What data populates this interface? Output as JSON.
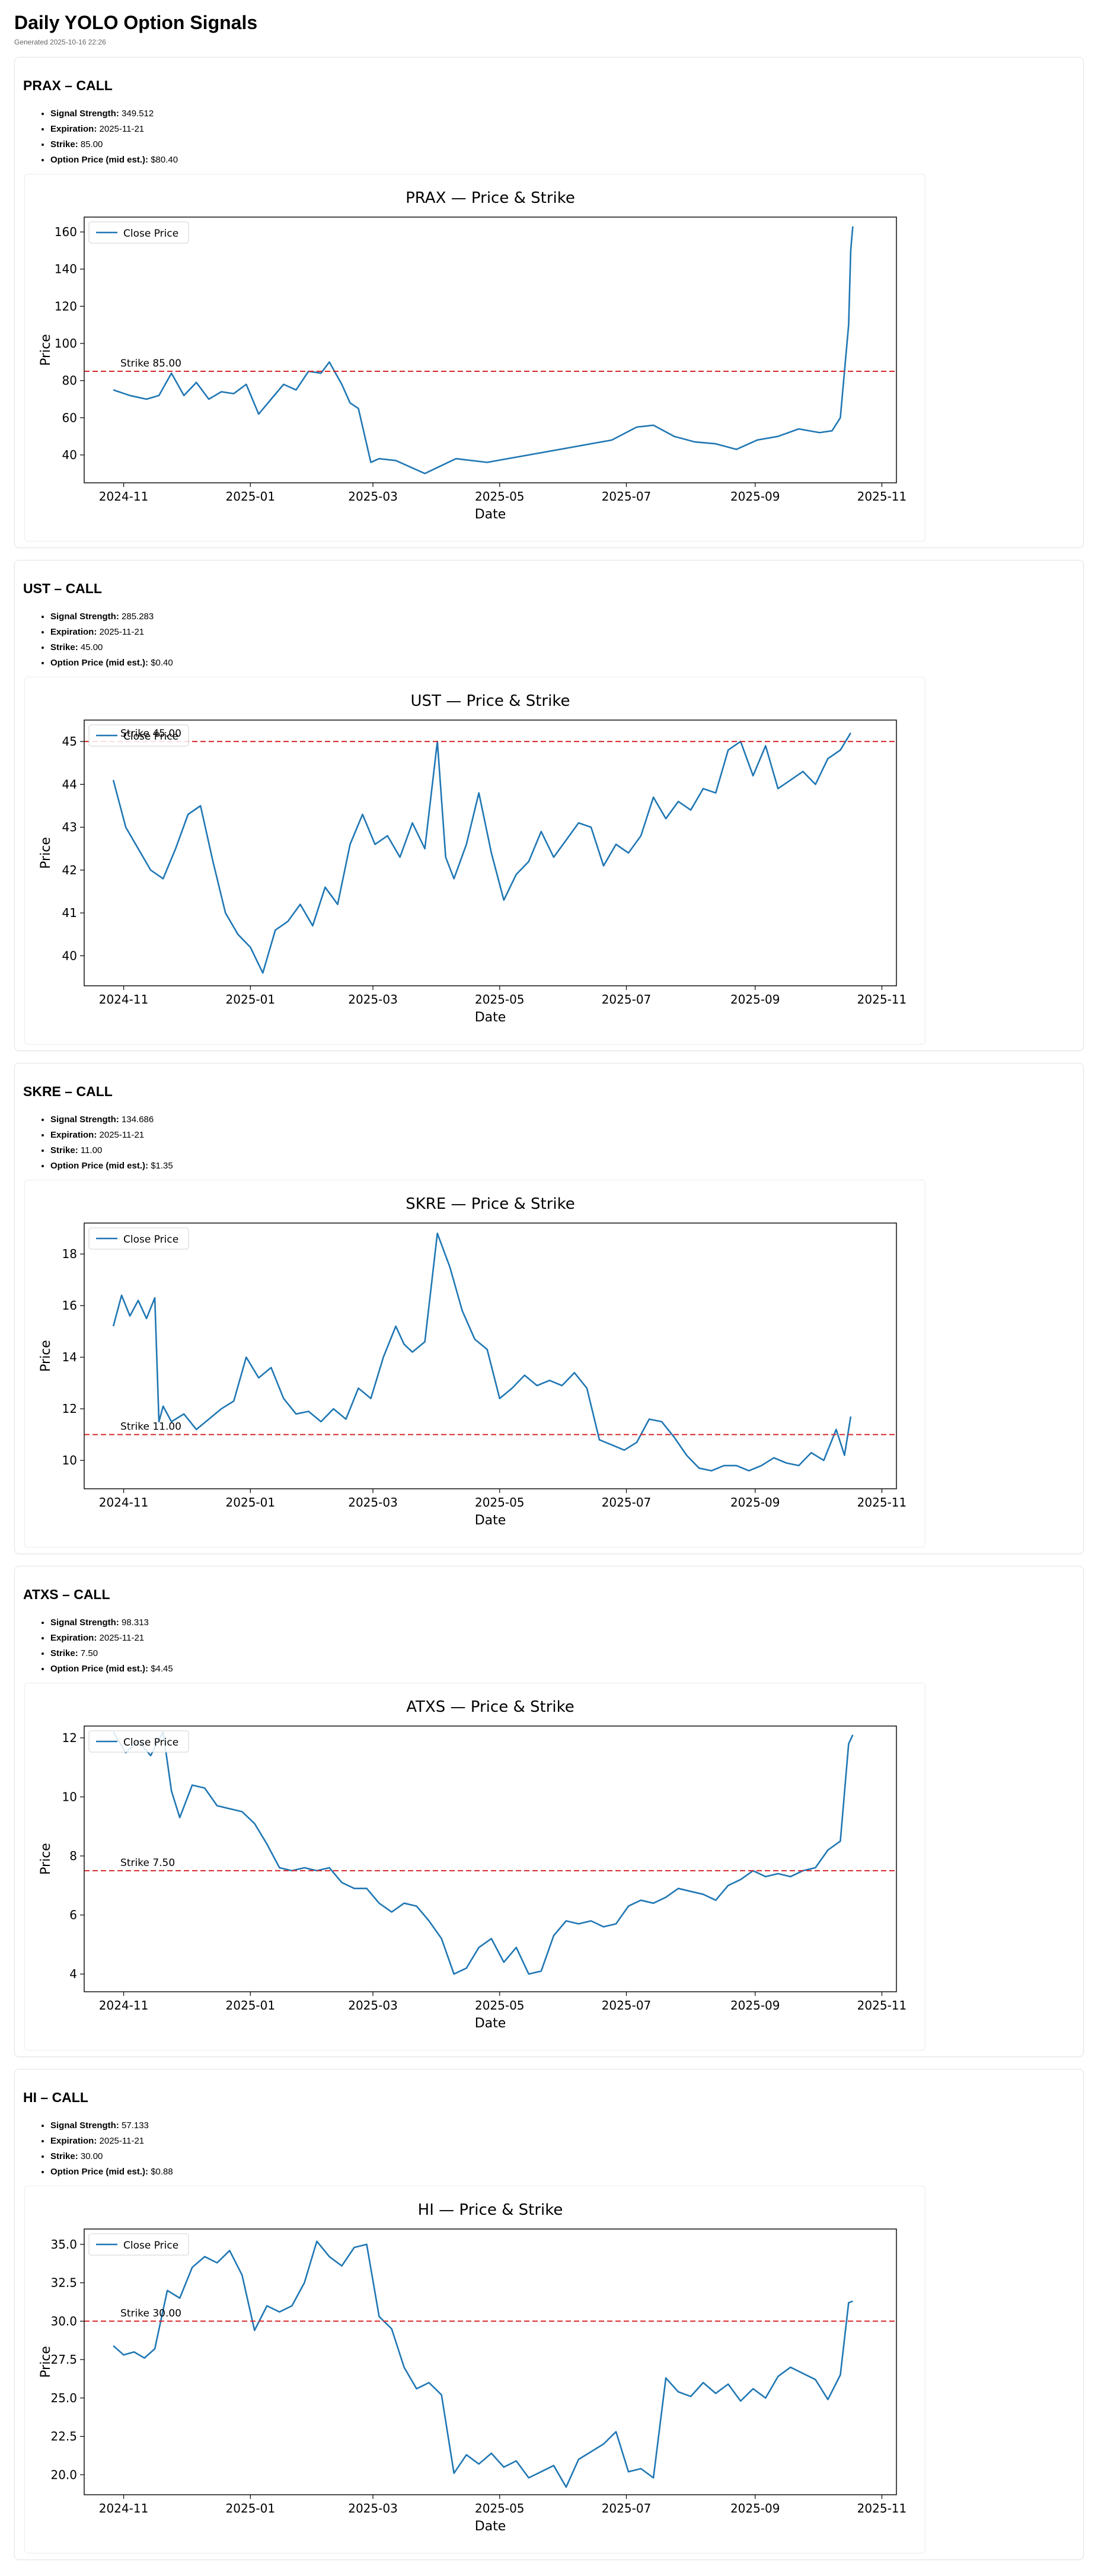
{
  "page": {
    "title": "Daily YOLO Option Signals",
    "generated": "Generated 2025-10-16 22:26"
  },
  "labels": {
    "signal_strength": "Signal Strength:",
    "expiration": "Expiration:",
    "strike": "Strike:",
    "option_price": "Option Price (mid est.):"
  },
  "colors": {
    "line": "#1f77b4",
    "strike_line": "#d62728"
  },
  "signals": [
    {
      "heading": "PRAX – CALL",
      "signal_strength": "349.512",
      "expiration": "2025-11-21",
      "strike": "85.00",
      "option_price": "$80.40"
    },
    {
      "heading": "UST – CALL",
      "signal_strength": "285.283",
      "expiration": "2025-11-21",
      "strike": "45.00",
      "option_price": "$0.40"
    },
    {
      "heading": "SKRE – CALL",
      "signal_strength": "134.686",
      "expiration": "2025-11-21",
      "strike": "11.00",
      "option_price": "$1.35"
    },
    {
      "heading": "ATXS – CALL",
      "signal_strength": "98.313",
      "expiration": "2025-11-21",
      "strike": "7.50",
      "option_price": "$4.45"
    },
    {
      "heading": "HI – CALL",
      "signal_strength": "57.133",
      "expiration": "2025-11-21",
      "strike": "30.00",
      "option_price": "$0.88"
    }
  ],
  "chart_data": [
    {
      "type": "line",
      "title": "PRAX — Price & Strike",
      "xlabel": "Date",
      "ylabel": "Price",
      "legend": "Close Price",
      "legend_position": "top-left",
      "strike": 85.0,
      "strike_label": "Strike 85.00",
      "xlim": [
        -14,
        377
      ],
      "x_ticks": [
        {
          "t": 5,
          "label": "2024-11"
        },
        {
          "t": 66,
          "label": "2025-01"
        },
        {
          "t": 125,
          "label": "2025-03"
        },
        {
          "t": 186,
          "label": "2025-05"
        },
        {
          "t": 247,
          "label": "2025-07"
        },
        {
          "t": 309,
          "label": "2025-09"
        },
        {
          "t": 370,
          "label": "2025-11"
        }
      ],
      "ylim": [
        25,
        168
      ],
      "y_ticks": [
        40,
        60,
        80,
        100,
        120,
        140,
        160
      ],
      "series": [
        {
          "name": "Close Price",
          "t": [
            0,
            8,
            16,
            22,
            28,
            34,
            40,
            46,
            52,
            58,
            64,
            70,
            76,
            82,
            88,
            94,
            100,
            104,
            110,
            114,
            118,
            124,
            128,
            136,
            150,
            165,
            180,
            200,
            220,
            240,
            252,
            260,
            270,
            280,
            290,
            300,
            310,
            320,
            330,
            340,
            346,
            350,
            354,
            355,
            356
          ],
          "y": [
            75,
            72,
            70,
            72,
            84,
            72,
            79,
            70,
            74,
            73,
            78,
            62,
            70,
            78,
            75,
            85,
            84,
            90,
            78,
            68,
            65,
            36,
            38,
            37,
            30,
            38,
            36,
            40,
            44,
            48,
            55,
            56,
            50,
            47,
            46,
            43,
            48,
            50,
            54,
            52,
            53,
            60,
            110,
            150,
            163
          ]
        }
      ]
    },
    {
      "type": "line",
      "title": "UST — Price & Strike",
      "xlabel": "Date",
      "ylabel": "Price",
      "legend": "Close Price",
      "legend_position": "top-left",
      "strike": 45.0,
      "strike_label": "Strike 45.00",
      "xlim": [
        -14,
        377
      ],
      "x_ticks": [
        {
          "t": 5,
          "label": "2024-11"
        },
        {
          "t": 66,
          "label": "2025-01"
        },
        {
          "t": 125,
          "label": "2025-03"
        },
        {
          "t": 186,
          "label": "2025-05"
        },
        {
          "t": 247,
          "label": "2025-07"
        },
        {
          "t": 309,
          "label": "2025-09"
        },
        {
          "t": 370,
          "label": "2025-11"
        }
      ],
      "ylim": [
        39.3,
        45.5
      ],
      "y_ticks": [
        40,
        41,
        42,
        43,
        44,
        45
      ],
      "series": [
        {
          "name": "Close Price",
          "t": [
            0,
            6,
            12,
            18,
            24,
            30,
            36,
            42,
            48,
            54,
            60,
            66,
            72,
            78,
            84,
            90,
            96,
            102,
            108,
            114,
            120,
            126,
            132,
            138,
            144,
            150,
            156,
            160,
            164,
            170,
            176,
            182,
            188,
            194,
            200,
            206,
            212,
            218,
            224,
            230,
            236,
            242,
            248,
            254,
            260,
            266,
            272,
            278,
            284,
            290,
            296,
            302,
            308,
            314,
            320,
            326,
            332,
            338,
            344,
            350,
            355
          ],
          "y": [
            44.1,
            43.0,
            42.5,
            42.0,
            41.8,
            42.5,
            43.3,
            43.5,
            42.2,
            41.0,
            40.5,
            40.2,
            39.6,
            40.6,
            40.8,
            41.2,
            40.7,
            41.6,
            41.2,
            42.6,
            43.3,
            42.6,
            42.8,
            42.3,
            43.1,
            42.5,
            45.0,
            42.3,
            41.8,
            42.6,
            43.8,
            42.4,
            41.3,
            41.9,
            42.2,
            42.9,
            42.3,
            42.7,
            43.1,
            43.0,
            42.1,
            42.6,
            42.4,
            42.8,
            43.7,
            43.2,
            43.6,
            43.4,
            43.9,
            43.8,
            44.8,
            45.0,
            44.2,
            44.9,
            43.9,
            44.1,
            44.3,
            44.0,
            44.6,
            44.8,
            45.2
          ]
        }
      ]
    },
    {
      "type": "line",
      "title": "SKRE — Price & Strike",
      "xlabel": "Date",
      "ylabel": "Price",
      "legend": "Close Price",
      "legend_position": "top-left",
      "strike": 11.0,
      "strike_label": "Strike 11.00",
      "xlim": [
        -14,
        377
      ],
      "x_ticks": [
        {
          "t": 5,
          "label": "2024-11"
        },
        {
          "t": 66,
          "label": "2025-01"
        },
        {
          "t": 125,
          "label": "2025-03"
        },
        {
          "t": 186,
          "label": "2025-05"
        },
        {
          "t": 247,
          "label": "2025-07"
        },
        {
          "t": 309,
          "label": "2025-09"
        },
        {
          "t": 370,
          "label": "2025-11"
        }
      ],
      "ylim": [
        8.9,
        19.2
      ],
      "y_ticks": [
        10,
        12,
        14,
        16,
        18
      ],
      "series": [
        {
          "name": "Close Price",
          "t": [
            0,
            4,
            8,
            12,
            16,
            20,
            22,
            24,
            28,
            34,
            40,
            46,
            52,
            58,
            64,
            70,
            76,
            82,
            88,
            94,
            100,
            106,
            112,
            118,
            124,
            130,
            136,
            140,
            144,
            150,
            156,
            162,
            168,
            174,
            180,
            186,
            192,
            198,
            204,
            210,
            216,
            222,
            228,
            234,
            240,
            246,
            252,
            258,
            264,
            270,
            276,
            282,
            288,
            294,
            300,
            306,
            312,
            318,
            324,
            330,
            336,
            342,
            348,
            352,
            355
          ],
          "y": [
            15.2,
            16.4,
            15.6,
            16.2,
            15.5,
            16.3,
            11.5,
            12.1,
            11.5,
            11.8,
            11.2,
            11.6,
            12.0,
            12.3,
            14.0,
            13.2,
            13.6,
            12.4,
            11.8,
            11.9,
            11.5,
            12.0,
            11.6,
            12.8,
            12.4,
            14.0,
            15.2,
            14.5,
            14.2,
            14.6,
            18.8,
            17.5,
            15.8,
            14.7,
            14.3,
            12.4,
            12.8,
            13.3,
            12.9,
            13.1,
            12.9,
            13.4,
            12.8,
            10.8,
            10.6,
            10.4,
            10.7,
            11.6,
            11.5,
            10.9,
            10.2,
            9.7,
            9.6,
            9.8,
            9.8,
            9.6,
            9.8,
            10.1,
            9.9,
            9.8,
            10.3,
            10.0,
            11.2,
            10.2,
            11.7
          ]
        }
      ]
    },
    {
      "type": "line",
      "title": "ATXS — Price & Strike",
      "xlabel": "Date",
      "ylabel": "Price",
      "legend": "Close Price",
      "legend_position": "top-left",
      "strike": 7.5,
      "strike_label": "Strike 7.50",
      "xlim": [
        -14,
        377
      ],
      "x_ticks": [
        {
          "t": 5,
          "label": "2024-11"
        },
        {
          "t": 66,
          "label": "2025-01"
        },
        {
          "t": 125,
          "label": "2025-03"
        },
        {
          "t": 186,
          "label": "2025-05"
        },
        {
          "t": 247,
          "label": "2025-07"
        },
        {
          "t": 309,
          "label": "2025-09"
        },
        {
          "t": 370,
          "label": "2025-11"
        }
      ],
      "ylim": [
        3.4,
        12.4
      ],
      "y_ticks": [
        4,
        6,
        8,
        10,
        12
      ],
      "series": [
        {
          "name": "Close Price",
          "t": [
            0,
            6,
            12,
            18,
            24,
            28,
            32,
            38,
            44,
            50,
            56,
            62,
            68,
            74,
            80,
            86,
            92,
            98,
            104,
            110,
            116,
            122,
            128,
            134,
            140,
            146,
            152,
            158,
            164,
            170,
            176,
            182,
            188,
            194,
            200,
            206,
            212,
            218,
            224,
            230,
            236,
            242,
            248,
            254,
            260,
            266,
            272,
            278,
            284,
            290,
            296,
            302,
            308,
            314,
            320,
            326,
            332,
            338,
            344,
            350,
            354,
            356
          ],
          "y": [
            12.2,
            11.5,
            11.9,
            11.4,
            12.2,
            10.2,
            9.3,
            10.4,
            10.3,
            9.7,
            9.6,
            9.5,
            9.1,
            8.4,
            7.6,
            7.5,
            7.6,
            7.5,
            7.6,
            7.1,
            6.9,
            6.9,
            6.4,
            6.1,
            6.4,
            6.3,
            5.8,
            5.2,
            4.0,
            4.2,
            4.9,
            5.2,
            4.4,
            4.9,
            4.0,
            4.1,
            5.3,
            5.8,
            5.7,
            5.8,
            5.6,
            5.7,
            6.3,
            6.5,
            6.4,
            6.6,
            6.9,
            6.8,
            6.7,
            6.5,
            7.0,
            7.2,
            7.5,
            7.3,
            7.4,
            7.3,
            7.5,
            7.6,
            8.2,
            8.5,
            11.8,
            12.1
          ]
        }
      ]
    },
    {
      "type": "line",
      "title": "HI — Price & Strike",
      "xlabel": "Date",
      "ylabel": "Price",
      "legend": "Close Price",
      "legend_position": "top-left",
      "strike": 30.0,
      "strike_label": "Strike 30.00",
      "xlim": [
        -14,
        377
      ],
      "x_ticks": [
        {
          "t": 5,
          "label": "2024-11"
        },
        {
          "t": 66,
          "label": "2025-01"
        },
        {
          "t": 125,
          "label": "2025-03"
        },
        {
          "t": 186,
          "label": "2025-05"
        },
        {
          "t": 247,
          "label": "2025-07"
        },
        {
          "t": 309,
          "label": "2025-09"
        },
        {
          "t": 370,
          "label": "2025-11"
        }
      ],
      "ylim": [
        18.7,
        36.0
      ],
      "y_ticks": [
        20.0,
        22.5,
        25.0,
        27.5,
        30.0,
        32.5,
        35.0
      ],
      "series": [
        {
          "name": "Close Price",
          "t": [
            0,
            5,
            10,
            15,
            20,
            26,
            32,
            38,
            44,
            50,
            56,
            62,
            68,
            74,
            80,
            86,
            92,
            98,
            104,
            110,
            116,
            122,
            128,
            134,
            140,
            146,
            152,
            158,
            164,
            170,
            176,
            182,
            188,
            194,
            200,
            206,
            212,
            218,
            224,
            230,
            236,
            242,
            248,
            254,
            260,
            266,
            272,
            278,
            284,
            290,
            296,
            302,
            308,
            314,
            320,
            326,
            332,
            338,
            344,
            350,
            354,
            356
          ],
          "y": [
            28.4,
            27.8,
            28.0,
            27.6,
            28.2,
            32.0,
            31.5,
            33.5,
            34.2,
            33.8,
            34.6,
            33.0,
            29.4,
            31.0,
            30.6,
            31.0,
            32.5,
            35.2,
            34.2,
            33.6,
            34.8,
            35.0,
            30.3,
            29.5,
            27.0,
            25.6,
            26.0,
            25.2,
            20.1,
            21.3,
            20.7,
            21.4,
            20.5,
            20.9,
            19.8,
            20.2,
            20.6,
            19.2,
            21.0,
            21.5,
            22.0,
            22.8,
            20.2,
            20.4,
            19.8,
            26.3,
            25.4,
            25.1,
            26.0,
            25.3,
            25.9,
            24.8,
            25.6,
            25.0,
            26.4,
            27.0,
            26.6,
            26.2,
            24.9,
            26.5,
            31.2,
            31.3
          ]
        }
      ]
    }
  ]
}
